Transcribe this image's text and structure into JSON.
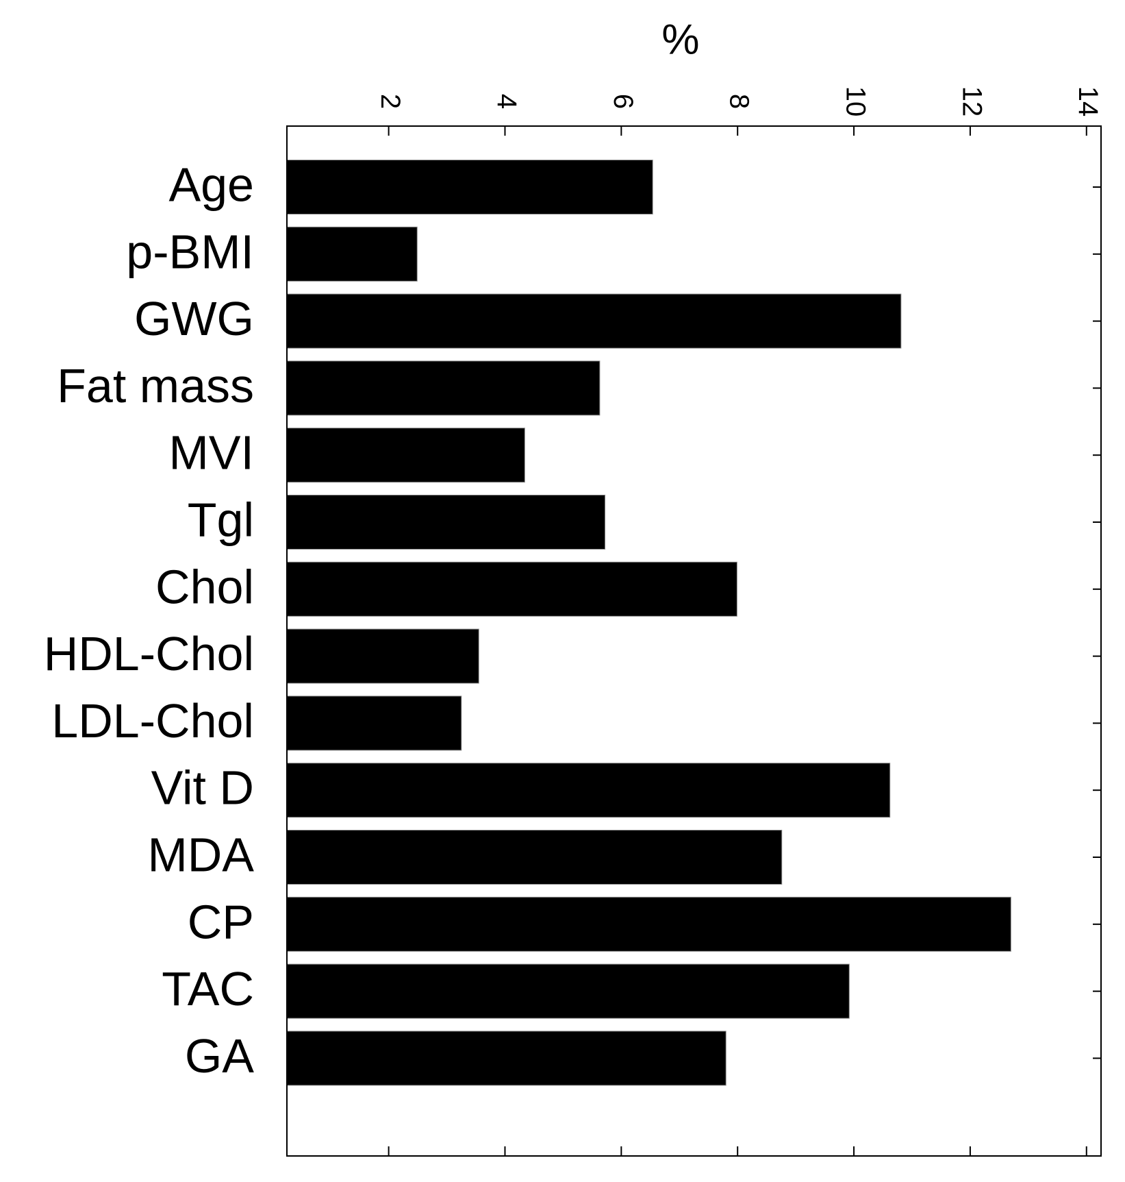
{
  "chart_data": {
    "type": "barh",
    "xlabel": "%",
    "categories": [
      "Age",
      "p-BMI",
      "GWG",
      "Fat mass",
      "MVI",
      "Tgl",
      "Chol",
      "HDL-Chol",
      "LDL-Chol",
      "Vit D",
      "MDA",
      "CP",
      "TAC",
      "GA"
    ],
    "values": [
      6.54,
      2.49,
      10.81,
      5.63,
      4.34,
      5.72,
      7.99,
      3.55,
      3.25,
      10.62,
      8.76,
      12.7,
      9.92,
      7.8
    ],
    "color": "#000000",
    "xlim": [
      0.25,
      14.25
    ],
    "xticks": [
      2,
      4,
      6,
      8,
      10,
      12,
      14
    ],
    "grid": false
  }
}
